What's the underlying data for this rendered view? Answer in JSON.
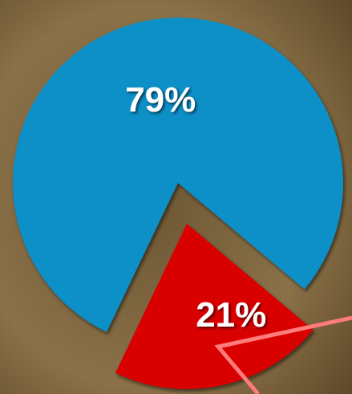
{
  "chart_data": {
    "type": "pie",
    "values": [
      79,
      21
    ],
    "value_labels": [
      "79%",
      "21%"
    ],
    "colors": [
      "#0a8fc7",
      "#d90000"
    ]
  }
}
